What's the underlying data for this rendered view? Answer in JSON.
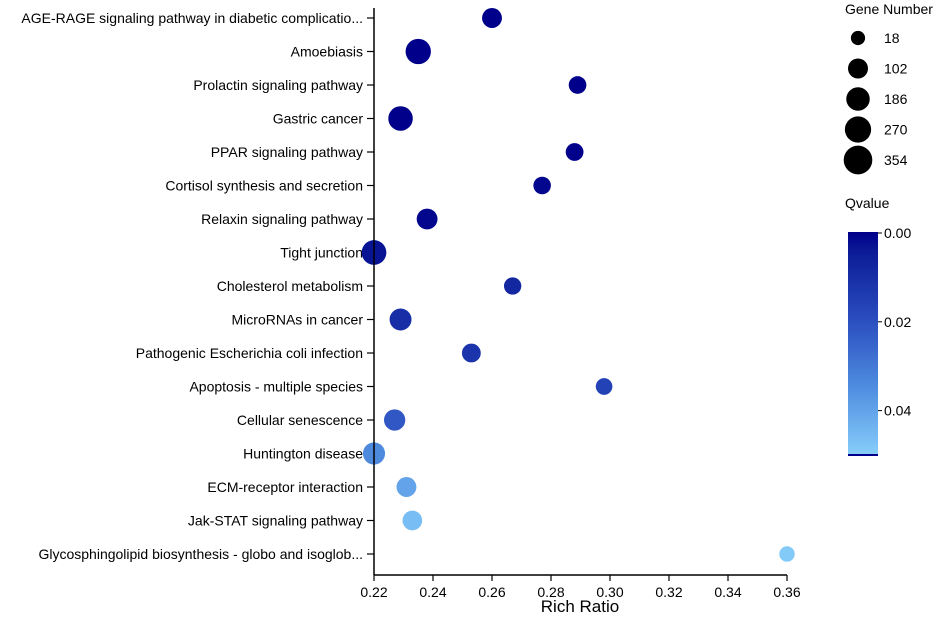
{
  "chart_data": {
    "type": "scatter",
    "xlabel": "Rich Ratio",
    "xlim": [
      0.22,
      0.36
    ],
    "xticks": [
      "0.22",
      "0.24",
      "0.26",
      "0.28",
      "0.30",
      "0.32",
      "0.34",
      "0.36"
    ],
    "xtick_values": [
      0.22,
      0.24,
      0.26,
      0.28,
      0.3,
      0.32,
      0.34,
      0.36
    ],
    "pathways": [
      {
        "name": "AGE-RAGE signaling pathway in diabetic complicatio...",
        "rich_ratio": 0.26,
        "gene_number": 100,
        "qvalue": 0.0
      },
      {
        "name": "Amoebiasis",
        "rich_ratio": 0.235,
        "gene_number": 240,
        "qvalue": 0.0
      },
      {
        "name": "Prolactin signaling pathway",
        "rich_ratio": 0.289,
        "gene_number": 60,
        "qvalue": 0.0
      },
      {
        "name": "Gastric cancer",
        "rich_ratio": 0.229,
        "gene_number": 215,
        "qvalue": 0.0
      },
      {
        "name": "PPAR signaling pathway",
        "rich_ratio": 0.288,
        "gene_number": 62,
        "qvalue": 0.0
      },
      {
        "name": "Cortisol synthesis and secretion",
        "rich_ratio": 0.277,
        "gene_number": 58,
        "qvalue": 0.001
      },
      {
        "name": "Relaxin signaling pathway",
        "rich_ratio": 0.238,
        "gene_number": 120,
        "qvalue": 0.001
      },
      {
        "name": "Tight junction",
        "rich_ratio": 0.22,
        "gene_number": 220,
        "qvalue": 0.003
      },
      {
        "name": "Cholesterol metabolism",
        "rich_ratio": 0.267,
        "gene_number": 55,
        "qvalue": 0.008
      },
      {
        "name": "MicroRNAs in cancer",
        "rich_ratio": 0.229,
        "gene_number": 145,
        "qvalue": 0.01
      },
      {
        "name": "Pathogenic Escherichia coli infection",
        "rich_ratio": 0.253,
        "gene_number": 80,
        "qvalue": 0.012
      },
      {
        "name": "Apoptosis - multiple species",
        "rich_ratio": 0.298,
        "gene_number": 45,
        "qvalue": 0.016
      },
      {
        "name": "Cellular senescence",
        "rich_ratio": 0.227,
        "gene_number": 130,
        "qvalue": 0.022
      },
      {
        "name": "Huntington disease",
        "rich_ratio": 0.22,
        "gene_number": 150,
        "qvalue": 0.034
      },
      {
        "name": "ECM-receptor interaction",
        "rich_ratio": 0.231,
        "gene_number": 100,
        "qvalue": 0.04
      },
      {
        "name": "Jak-STAT signaling pathway",
        "rich_ratio": 0.233,
        "gene_number": 95,
        "qvalue": 0.046
      },
      {
        "name": "Glycosphingolipid biosynthesis - globo and isoglob...",
        "rich_ratio": 0.36,
        "gene_number": 30,
        "qvalue": 0.049
      }
    ],
    "size_legend": {
      "title": "Gene Number",
      "values": [
        18,
        102,
        186,
        270,
        354
      ],
      "labels": [
        "18",
        "102",
        "186",
        "270",
        "354"
      ]
    },
    "color_legend": {
      "title": "Qvalue",
      "range": [
        0.0,
        0.05
      ],
      "ticks": [
        "0.00",
        "0.02",
        "0.04"
      ],
      "tick_values": [
        0.0,
        0.02,
        0.04
      ],
      "color_low": "#00008B",
      "color_high": "#87CEFA"
    }
  }
}
